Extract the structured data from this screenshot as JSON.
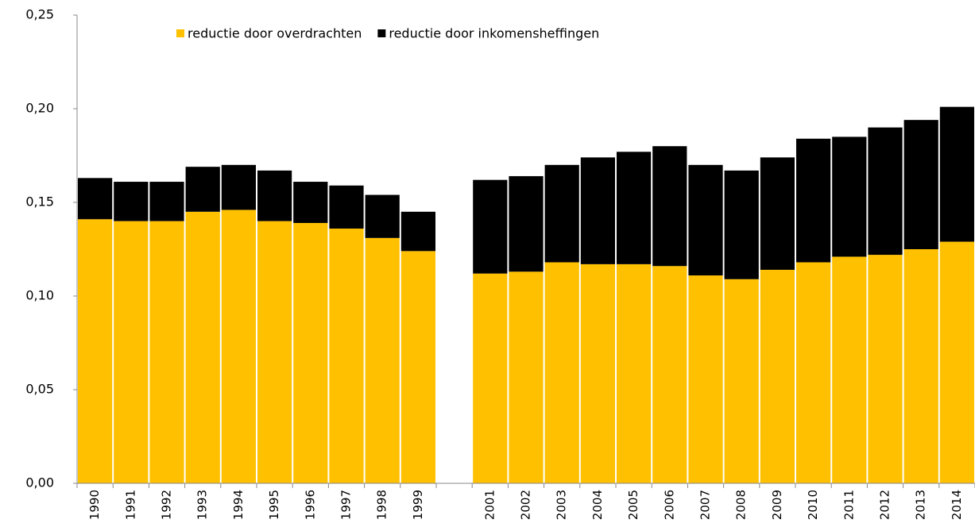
{
  "chart_data": {
    "type": "stacked_bar",
    "categories": [
      "1990",
      "1991",
      "1992",
      "1993",
      "1994",
      "1995",
      "1996",
      "1997",
      "1998",
      "1999",
      null,
      "2001",
      "2002",
      "2003",
      "2004",
      "2005",
      "2006",
      "2007",
      "2008",
      "2009",
      "2010",
      "2011",
      "2012",
      "2013",
      "2014"
    ],
    "series": [
      {
        "name": "reductie door overdrachten",
        "color": "#ffc000",
        "values": [
          0.141,
          0.14,
          0.14,
          0.145,
          0.146,
          0.14,
          0.139,
          0.136,
          0.131,
          0.124,
          null,
          0.112,
          0.113,
          0.118,
          0.117,
          0.117,
          0.116,
          0.111,
          0.109,
          0.114,
          0.118,
          0.121,
          0.122,
          0.125,
          0.129
        ]
      },
      {
        "name": "reductie door inkomensheffingen",
        "color": "#000000",
        "values": [
          0.022,
          0.021,
          0.021,
          0.024,
          0.024,
          0.027,
          0.022,
          0.023,
          0.023,
          0.021,
          null,
          0.05,
          0.051,
          0.052,
          0.057,
          0.06,
          0.064,
          0.059,
          0.058,
          0.06,
          0.066,
          0.064,
          0.068,
          0.069,
          0.072
        ]
      }
    ],
    "ylim": [
      0,
      0.25
    ],
    "yticks": [
      {
        "value": 0,
        "label": "0,00"
      },
      {
        "value": 0.05,
        "label": "0,05"
      },
      {
        "value": 0.1,
        "label": "0,10"
      },
      {
        "value": 0.15,
        "label": "0,15"
      },
      {
        "value": 0.2,
        "label": "0,20"
      },
      {
        "value": 0.25,
        "label": "0,25"
      }
    ],
    "legend": "top"
  }
}
